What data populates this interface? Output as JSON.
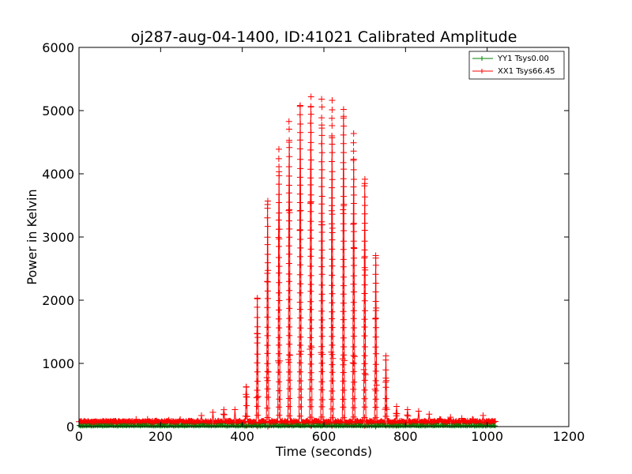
{
  "chart_data": {
    "type": "line",
    "title": "oj287-aug-04-1400, ID:41021 Calibrated Amplitude",
    "xlabel": "Time (seconds)",
    "ylabel": "Power in Kelvin",
    "xlim": [
      0,
      1200
    ],
    "ylim": [
      0,
      6000
    ],
    "xticks": [
      0,
      200,
      400,
      600,
      800,
      1000,
      1200
    ],
    "yticks": [
      0,
      1000,
      2000,
      3000,
      4000,
      5000,
      6000
    ],
    "grid": false,
    "legend_position": "top-right",
    "colors": {
      "YY1": "#008000",
      "XX1": "#ff0000"
    },
    "series": [
      {
        "name": "YY1 Tsys0.00",
        "color": "#008000",
        "marker": "+",
        "scans": [
          {
            "t": 0,
            "peak": 0
          },
          {
            "t": 1000,
            "peak": 0
          }
        ],
        "note_visible_values": "near zero across 0-1020 s"
      },
      {
        "name": "XX1 Tsys66.45",
        "color": "#ff0000",
        "marker": "+",
        "scan_peaks": [
          {
            "t": 5,
            "peak": 100
          },
          {
            "t": 35,
            "peak": 85
          },
          {
            "t": 60,
            "peak": 90
          },
          {
            "t": 88,
            "peak": 95
          },
          {
            "t": 115,
            "peak": 100
          },
          {
            "t": 140,
            "peak": 130
          },
          {
            "t": 168,
            "peak": 130
          },
          {
            "t": 195,
            "peak": 110
          },
          {
            "t": 220,
            "peak": 120
          },
          {
            "t": 248,
            "peak": 120
          },
          {
            "t": 275,
            "peak": 130
          },
          {
            "t": 300,
            "peak": 200
          },
          {
            "t": 328,
            "peak": 250
          },
          {
            "t": 355,
            "peak": 290
          },
          {
            "t": 382,
            "peak": 300
          },
          {
            "t": 410,
            "peak": 740
          },
          {
            "t": 437,
            "peak": 2150
          },
          {
            "t": 462,
            "peak": 3700
          },
          {
            "t": 490,
            "peak": 4500
          },
          {
            "t": 515,
            "peak": 4950
          },
          {
            "t": 542,
            "peak": 5200
          },
          {
            "t": 568,
            "peak": 5330
          },
          {
            "t": 595,
            "peak": 5300
          },
          {
            "t": 620,
            "peak": 5280
          },
          {
            "t": 648,
            "peak": 5150
          },
          {
            "t": 673,
            "peak": 4750
          },
          {
            "t": 700,
            "peak": 4050
          },
          {
            "t": 727,
            "peak": 2800
          },
          {
            "t": 752,
            "peak": 1180
          },
          {
            "t": 778,
            "peak": 320
          },
          {
            "t": 805,
            "peak": 280
          },
          {
            "t": 832,
            "peak": 260
          },
          {
            "t": 858,
            "peak": 220
          },
          {
            "t": 885,
            "peak": 180
          },
          {
            "t": 910,
            "peak": 160
          },
          {
            "t": 938,
            "peak": 150
          },
          {
            "t": 965,
            "peak": 170
          },
          {
            "t": 990,
            "peak": 190
          },
          {
            "t": 1015,
            "peak": 90
          }
        ]
      }
    ]
  }
}
